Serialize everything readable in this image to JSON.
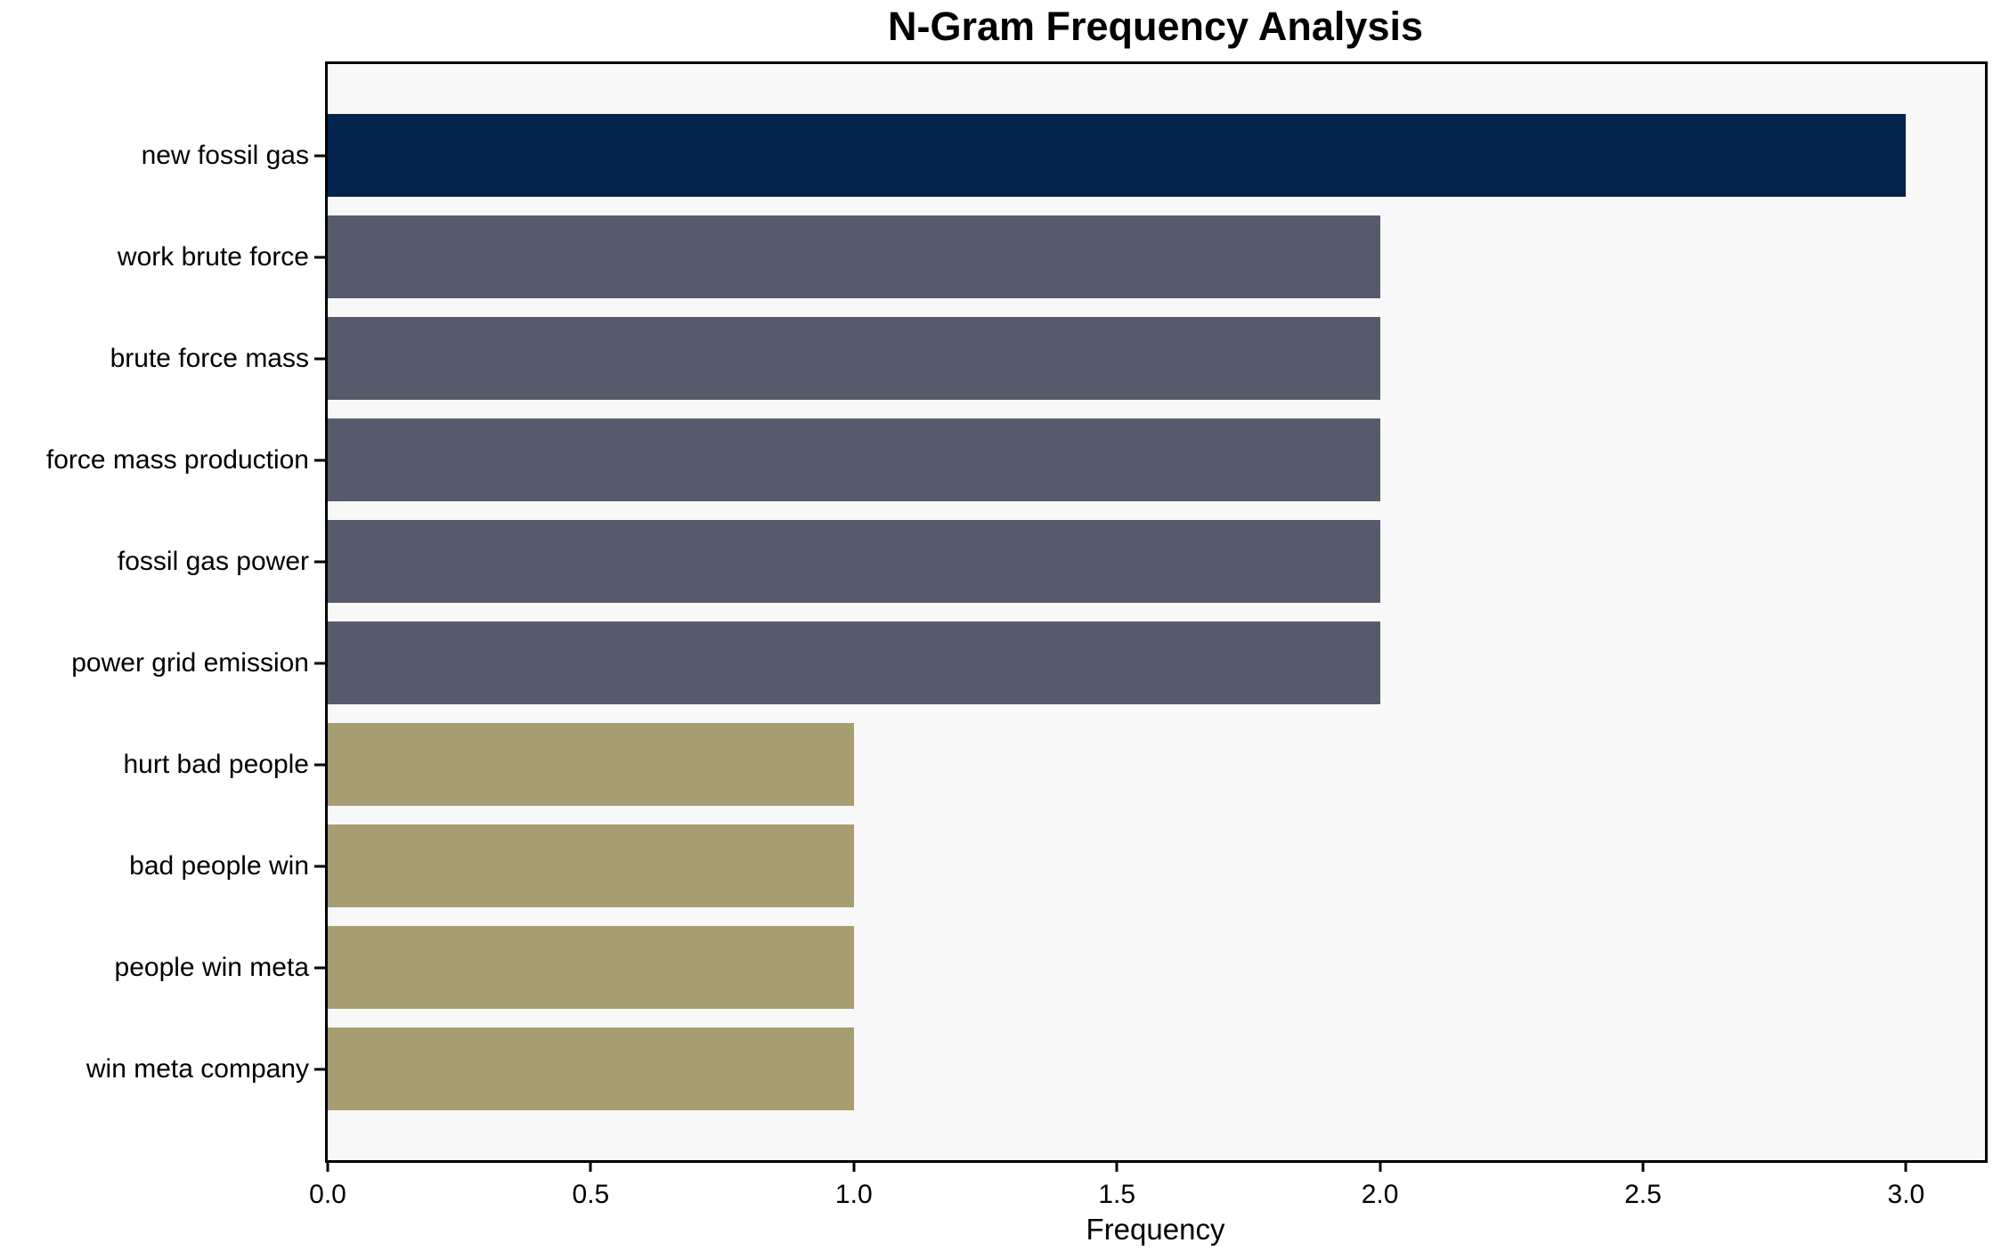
{
  "chart_data": {
    "type": "bar",
    "orientation": "horizontal",
    "title": "N-Gram Frequency Analysis",
    "xlabel": "Frequency",
    "ylabel": "",
    "categories": [
      "new fossil gas",
      "work brute force",
      "brute force mass",
      "force mass production",
      "fossil gas power",
      "power grid emission",
      "hurt bad people",
      "bad people win",
      "people win meta",
      "win meta company"
    ],
    "values": [
      3,
      2,
      2,
      2,
      2,
      2,
      1,
      1,
      1,
      1
    ],
    "bar_colors": [
      "#02234c",
      "#565b6b",
      "#565b6b",
      "#565b6b",
      "#565b6b",
      "#565b6b",
      "#a79d73",
      "#a79d73",
      "#a79d73",
      "#a79d73"
    ],
    "xlim": [
      0,
      3.15
    ],
    "xticks": [
      0.0,
      0.5,
      1.0,
      1.5,
      2.0,
      2.5,
      3.0
    ],
    "xtick_labels": [
      "0.0",
      "0.5",
      "1.0",
      "1.5",
      "2.0",
      "2.5",
      "3.0"
    ],
    "grid": false,
    "legend": "none",
    "plot_background": "#f8f8f8",
    "axis_color": "#000000"
  }
}
